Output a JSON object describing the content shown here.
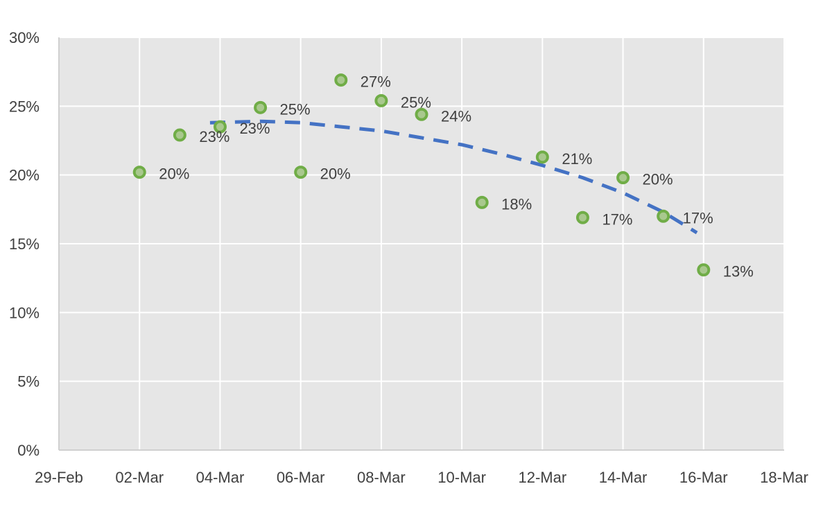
{
  "chart_data": {
    "type": "scatter",
    "title": "",
    "xlabel": "",
    "ylabel": "",
    "x_axis": {
      "type": "date",
      "min": "2020-02-29",
      "max": "2020-03-18",
      "tick_labels": [
        "29-Feb",
        "02-Mar",
        "04-Mar",
        "06-Mar",
        "08-Mar",
        "10-Mar",
        "12-Mar",
        "14-Mar",
        "16-Mar",
        "18-Mar"
      ],
      "tick_dates": [
        "2020-02-29",
        "2020-03-02",
        "2020-03-04",
        "2020-03-06",
        "2020-03-08",
        "2020-03-10",
        "2020-03-12",
        "2020-03-14",
        "2020-03-16",
        "2020-03-18"
      ]
    },
    "y_axis": {
      "min": 0,
      "max": 0.3,
      "tick_values": [
        0,
        0.05,
        0.1,
        0.15,
        0.2,
        0.25,
        0.3
      ],
      "tick_labels": [
        "0%",
        "5%",
        "10%",
        "15%",
        "20%",
        "25%",
        "30%"
      ]
    },
    "grid": true,
    "plot_background": "#e6e6e6",
    "gridline_color": "#ffffff",
    "marker_fill": "#a9c88e",
    "marker_stroke": "#70ad47",
    "trendline_color": "#4472c4",
    "trendline_style": "dashed",
    "series": [
      {
        "points": [
          {
            "x": "2020-03-02",
            "y": 0.202,
            "label": "20%"
          },
          {
            "x": "2020-03-03",
            "y": 0.229,
            "label": "23%"
          },
          {
            "x": "2020-03-04",
            "y": 0.235,
            "label": "23%"
          },
          {
            "x": "2020-03-05",
            "y": 0.249,
            "label": "25%"
          },
          {
            "x": "2020-03-06",
            "y": 0.202,
            "label": "20%"
          },
          {
            "x": "2020-03-07",
            "y": 0.269,
            "label": "27%"
          },
          {
            "x": "2020-03-08",
            "y": 0.254,
            "label": "25%"
          },
          {
            "x": "2020-03-09",
            "y": 0.244,
            "label": "24%"
          },
          {
            "x": "2020-03-10 12:00",
            "y": 0.18,
            "label": "18%"
          },
          {
            "x": "2020-03-12",
            "y": 0.213,
            "label": "21%"
          },
          {
            "x": "2020-03-13",
            "y": 0.169,
            "label": "17%"
          },
          {
            "x": "2020-03-14",
            "y": 0.198,
            "label": "20%"
          },
          {
            "x": "2020-03-15",
            "y": 0.17,
            "label": "17%"
          },
          {
            "x": "2020-03-16",
            "y": 0.131,
            "label": "13%"
          }
        ]
      }
    ],
    "trendline": {
      "type": "polynomial",
      "points": [
        {
          "x": "2020-03-03 18:00",
          "y": 0.238
        },
        {
          "x": "2020-03-05",
          "y": 0.239
        },
        {
          "x": "2020-03-06",
          "y": 0.238
        },
        {
          "x": "2020-03-07",
          "y": 0.235
        },
        {
          "x": "2020-03-08",
          "y": 0.232
        },
        {
          "x": "2020-03-09",
          "y": 0.227
        },
        {
          "x": "2020-03-10",
          "y": 0.222
        },
        {
          "x": "2020-03-11",
          "y": 0.215
        },
        {
          "x": "2020-03-12",
          "y": 0.207
        },
        {
          "x": "2020-03-13",
          "y": 0.198
        },
        {
          "x": "2020-03-14",
          "y": 0.187
        },
        {
          "x": "2020-03-15",
          "y": 0.173
        },
        {
          "x": "2020-03-15 20:00",
          "y": 0.158
        }
      ]
    }
  }
}
